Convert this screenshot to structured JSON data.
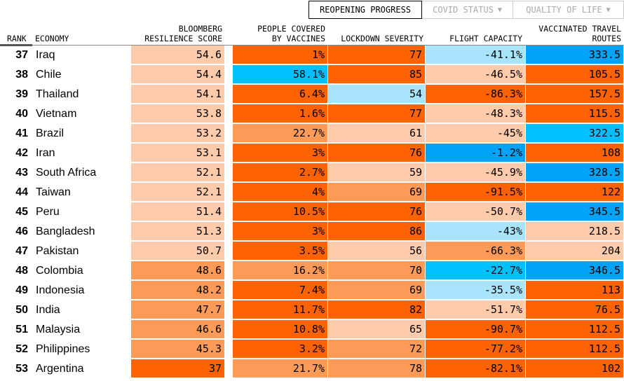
{
  "tabs": [
    {
      "label": "REOPENING PROGRESS",
      "active": true
    },
    {
      "label": "COVID STATUS",
      "icon": "caret-down-icon"
    },
    {
      "label": "QUALITY OF LIFE",
      "icon": "caret-down-icon"
    }
  ],
  "headers": {
    "rank": "RANK",
    "economy": "ECONOMY",
    "score": [
      "BLOOMBERG",
      "RESILIENCE SCORE"
    ],
    "vax": [
      "PEOPLE COVERED",
      "BY VACCINES"
    ],
    "lockdown": "LOCKDOWN SEVERITY",
    "flight": "FLIGHT CAPACITY",
    "routes": [
      "VACCINATED TRAVEL",
      "ROUTES"
    ]
  },
  "colors": {
    "o3": "#ff6200",
    "o2": "#ff9b58",
    "o1": "#ffcbab",
    "b1": "#a8e5fc",
    "b2": "#00c0ff",
    "b3": "#00a3f5"
  },
  "rows": [
    {
      "rank": "37",
      "economy": "Iraq",
      "values": [
        "54.6",
        "1%",
        "77",
        "-41.1%",
        "333.5"
      ],
      "colors": [
        "o1",
        "o3",
        "o3",
        "b1",
        "b3"
      ]
    },
    {
      "rank": "38",
      "economy": "Chile",
      "values": [
        "54.4",
        "58.1%",
        "85",
        "-46.5%",
        "105.5"
      ],
      "colors": [
        "o1",
        "b2",
        "o3",
        "o1",
        "o3"
      ]
    },
    {
      "rank": "39",
      "economy": "Thailand",
      "values": [
        "54.1",
        "6.4%",
        "54",
        "-86.3%",
        "157.5"
      ],
      "colors": [
        "o1",
        "o3",
        "b1",
        "o3",
        "o3"
      ]
    },
    {
      "rank": "40",
      "economy": "Vietnam",
      "values": [
        "53.8",
        "1.6%",
        "77",
        "-48.3%",
        "115.5"
      ],
      "colors": [
        "o1",
        "o3",
        "o3",
        "o1",
        "o3"
      ]
    },
    {
      "rank": "41",
      "economy": "Brazil",
      "values": [
        "53.2",
        "22.7%",
        "61",
        "-45%",
        "322.5"
      ],
      "colors": [
        "o1",
        "o2",
        "o1",
        "o1",
        "b2"
      ]
    },
    {
      "rank": "42",
      "economy": "Iran",
      "values": [
        "53.1",
        "3%",
        "76",
        "-1.2%",
        "108"
      ],
      "colors": [
        "o1",
        "o3",
        "o3",
        "b3",
        "o3"
      ]
    },
    {
      "rank": "43",
      "economy": "South Africa",
      "values": [
        "52.1",
        "2.7%",
        "59",
        "-45.9%",
        "328.5"
      ],
      "colors": [
        "o1",
        "o3",
        "o1",
        "o1",
        "b3"
      ]
    },
    {
      "rank": "44",
      "economy": "Taiwan",
      "values": [
        "52.1",
        "4%",
        "69",
        "-91.5%",
        "122"
      ],
      "colors": [
        "o1",
        "o3",
        "o2",
        "o3",
        "o3"
      ]
    },
    {
      "rank": "45",
      "economy": "Peru",
      "values": [
        "51.4",
        "10.5%",
        "76",
        "-50.7%",
        "345.5"
      ],
      "colors": [
        "o1",
        "o3",
        "o3",
        "o1",
        "b3"
      ]
    },
    {
      "rank": "46",
      "economy": "Bangladesh",
      "values": [
        "51.3",
        "3%",
        "86",
        "-43%",
        "218.5"
      ],
      "colors": [
        "o1",
        "o3",
        "o3",
        "b1",
        "o1"
      ]
    },
    {
      "rank": "47",
      "economy": "Pakistan",
      "values": [
        "50.7",
        "3.5%",
        "56",
        "-66.3%",
        "204"
      ],
      "colors": [
        "o1",
        "o3",
        "o1",
        "o2",
        "o1"
      ]
    },
    {
      "rank": "48",
      "economy": "Colombia",
      "values": [
        "48.6",
        "16.2%",
        "70",
        "-22.7%",
        "346.5"
      ],
      "colors": [
        "o2",
        "o2",
        "o2",
        "b2",
        "b3"
      ]
    },
    {
      "rank": "49",
      "economy": "Indonesia",
      "values": [
        "48.2",
        "7.4%",
        "69",
        "-35.5%",
        "113"
      ],
      "colors": [
        "o2",
        "o3",
        "o2",
        "b1",
        "o3"
      ]
    },
    {
      "rank": "50",
      "economy": "India",
      "values": [
        "47.7",
        "11.7%",
        "82",
        "-51.7%",
        "76.5"
      ],
      "colors": [
        "o2",
        "o3",
        "o3",
        "o1",
        "o3"
      ]
    },
    {
      "rank": "51",
      "economy": "Malaysia",
      "values": [
        "46.6",
        "10.8%",
        "65",
        "-90.7%",
        "112.5"
      ],
      "colors": [
        "o2",
        "o3",
        "o1",
        "o3",
        "o3"
      ]
    },
    {
      "rank": "52",
      "economy": "Philippines",
      "values": [
        "45.3",
        "3.2%",
        "72",
        "-77.2%",
        "112.5"
      ],
      "colors": [
        "o2",
        "o3",
        "o2",
        "o3",
        "o3"
      ]
    },
    {
      "rank": "53",
      "economy": "Argentina",
      "values": [
        "37",
        "21.7%",
        "78",
        "-82.1%",
        "102"
      ],
      "colors": [
        "o3",
        "o2",
        "o2",
        "o3",
        "o3"
      ]
    }
  ]
}
